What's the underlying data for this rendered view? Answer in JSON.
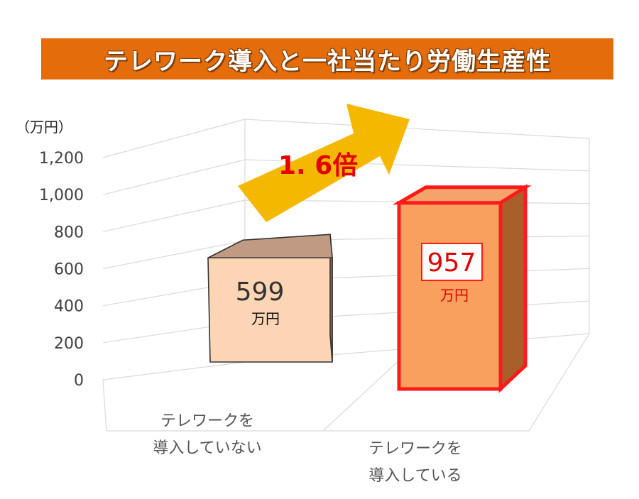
{
  "title": "テレワーク導入と一社当たり労働生産性",
  "colors": {
    "banner": "#e46c0a",
    "bar1_front": "#fcd5b5",
    "bar1_side": "#a5765a",
    "bar1_top": "#c09a82",
    "bar1_stroke": "#333333",
    "bar2_front": "#f9a05f",
    "bar2_side": "#a85f2a",
    "bar2_top": "#f4a36a",
    "bar2_stroke": "#ff1a1a",
    "arrow": "#f5b800",
    "highlight_text": "#e00000"
  },
  "chart_data": {
    "type": "bar",
    "yunit": "（万円）",
    "ylim": [
      0,
      1200
    ],
    "yticks": [
      "0",
      "200",
      "400",
      "600",
      "800",
      "1,000",
      "1,200"
    ],
    "grid": true,
    "categories": [
      [
        "テレワークを",
        "導入していない"
      ],
      [
        "テレワークを",
        "導入している"
      ]
    ],
    "values": [
      599,
      957
    ],
    "value_labels": [
      "599",
      "957"
    ],
    "value_units": [
      "万円",
      "万円"
    ],
    "annotation": "1. 6倍"
  }
}
